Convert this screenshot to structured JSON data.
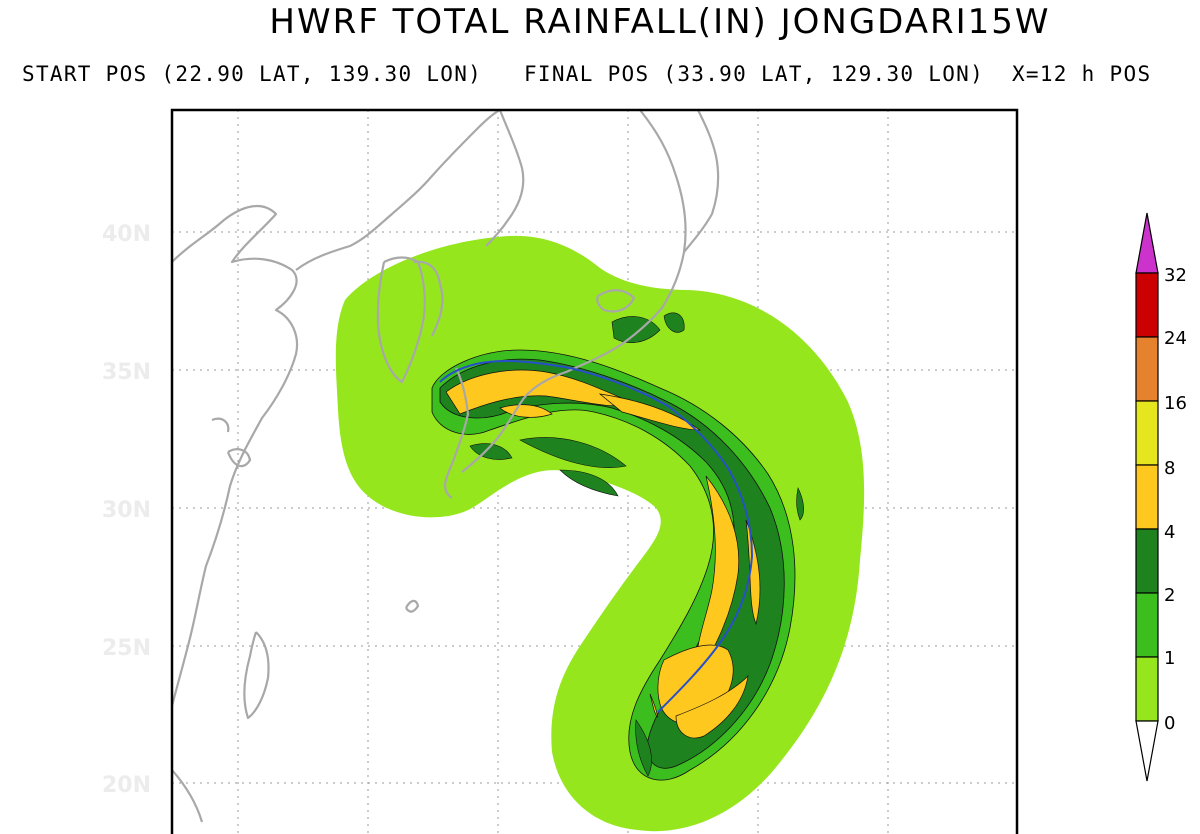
{
  "header": {
    "title": "HWRF TOTAL RAINFALL(IN) JONGDARI15W",
    "subtitle": "START POS (22.90 LAT, 139.30 LON)   FINAL POS (33.90 LAT, 129.30 LON)  X=12 h POS"
  },
  "map": {
    "lat_labels": [
      "40N",
      "35N",
      "30N",
      "25N",
      "20N"
    ]
  },
  "colorbar": {
    "ticks": [
      "32",
      "24",
      "16",
      "8",
      "4",
      "2",
      "1",
      "0"
    ],
    "colors": {
      "over": "#cc33cc",
      "c24_32": "#cc0000",
      "c16_24": "#e6822e",
      "c8_16": "#e6e61e",
      "c4_8": "#ffc81e",
      "c2_4": "#1e821e",
      "c1_2": "#3cbe1e",
      "c0_1": "#96e61e",
      "under": "#ffffff"
    }
  }
}
